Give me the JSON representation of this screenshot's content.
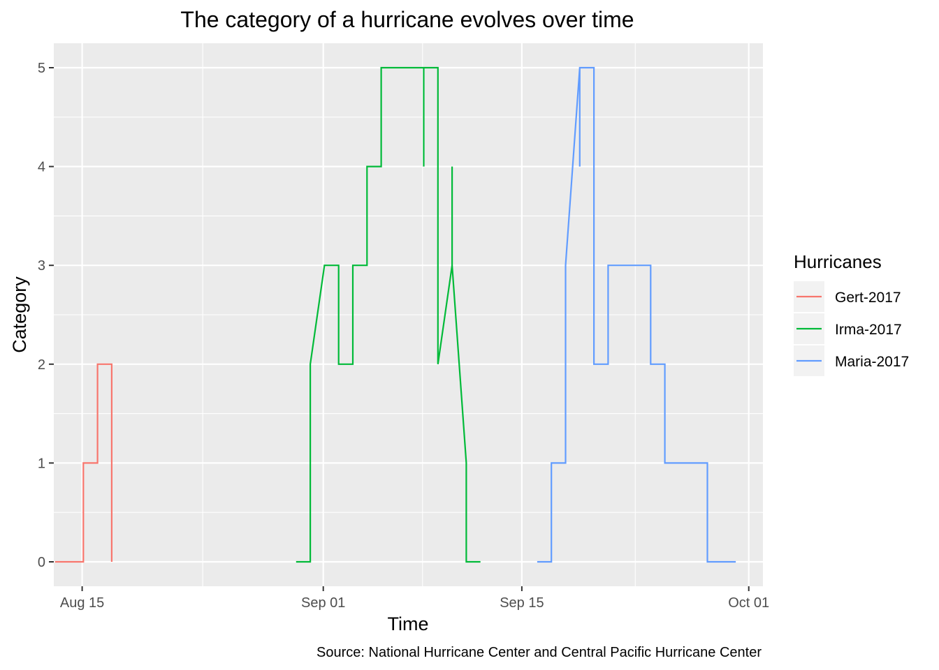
{
  "chart_data": {
    "type": "line",
    "title": "The category of a hurricane evolves over time",
    "xlabel": "Time",
    "ylabel": "Category",
    "caption": "Source:  National Hurricane Center and Central Pacific Hurricane Center",
    "xlim": [
      "2017-08-13T00:00",
      "2017-10-02T00:00"
    ],
    "ylim": [
      0,
      5
    ],
    "x_ticks": [
      {
        "date": "2017-08-15",
        "label": "Aug 15"
      },
      {
        "date": "2017-09-01",
        "label": "Sep 01"
      },
      {
        "date": "2017-09-15",
        "label": "Sep 15"
      },
      {
        "date": "2017-10-01",
        "label": "Oct 01"
      }
    ],
    "y_ticks": [
      0,
      1,
      2,
      3,
      4,
      5
    ],
    "grid": true,
    "legend": {
      "title": "Hurricanes",
      "position": "right"
    },
    "series": [
      {
        "name": "Gert-2017",
        "color": "#F8766D",
        "points": [
          [
            "2017-08-13T02:00",
            0
          ],
          [
            "2017-08-15T02:00",
            0
          ],
          [
            "2017-08-15T02:00",
            1
          ],
          [
            "2017-08-16T02:00",
            1
          ],
          [
            "2017-08-16T02:00",
            2
          ],
          [
            "2017-08-17T02:00",
            2
          ],
          [
            "2017-08-17T02:00",
            0
          ]
        ]
      },
      {
        "name": "Irma-2017",
        "color": "#00BA38",
        "points": [
          [
            "2017-08-30T02:00",
            0
          ],
          [
            "2017-08-31T02:00",
            0
          ],
          [
            "2017-08-31T02:00",
            2
          ],
          [
            "2017-09-01T02:00",
            3
          ],
          [
            "2017-09-02T02:00",
            3
          ],
          [
            "2017-09-02T02:00",
            2
          ],
          [
            "2017-09-03T02:00",
            2
          ],
          [
            "2017-09-03T02:00",
            3
          ],
          [
            "2017-09-04T02:00",
            3
          ],
          [
            "2017-09-04T02:00",
            4
          ],
          [
            "2017-09-05T02:00",
            4
          ],
          [
            "2017-09-05T02:00",
            5
          ],
          [
            "2017-09-08T02:00",
            5
          ],
          [
            "2017-09-08T02:00",
            4
          ],
          [
            "2017-09-08T02:00",
            5
          ],
          [
            "2017-09-09T02:00",
            5
          ],
          [
            "2017-09-09T02:00",
            2
          ],
          [
            "2017-09-10T02:00",
            3
          ],
          [
            "2017-09-10T02:00",
            4
          ],
          [
            "2017-09-10T02:00",
            3
          ],
          [
            "2017-09-11T02:00",
            1
          ],
          [
            "2017-09-11T02:00",
            0
          ],
          [
            "2017-09-12T02:00",
            0
          ]
        ]
      },
      {
        "name": "Maria-2017",
        "color": "#619CFF",
        "points": [
          [
            "2017-09-16T02:00",
            0
          ],
          [
            "2017-09-17T02:00",
            0
          ],
          [
            "2017-09-17T02:00",
            1
          ],
          [
            "2017-09-18T02:00",
            1
          ],
          [
            "2017-09-18T02:00",
            3
          ],
          [
            "2017-09-19T02:00",
            5
          ],
          [
            "2017-09-19T02:00",
            4
          ],
          [
            "2017-09-19T02:00",
            5
          ],
          [
            "2017-09-20T02:00",
            5
          ],
          [
            "2017-09-20T02:00",
            2
          ],
          [
            "2017-09-21T02:00",
            2
          ],
          [
            "2017-09-21T02:00",
            3
          ],
          [
            "2017-09-24T02:00",
            3
          ],
          [
            "2017-09-24T02:00",
            2
          ],
          [
            "2017-09-25T02:00",
            2
          ],
          [
            "2017-09-25T02:00",
            1
          ],
          [
            "2017-09-28T02:00",
            1
          ],
          [
            "2017-09-28T02:00",
            0
          ],
          [
            "2017-09-30T02:00",
            0
          ]
        ]
      }
    ]
  }
}
